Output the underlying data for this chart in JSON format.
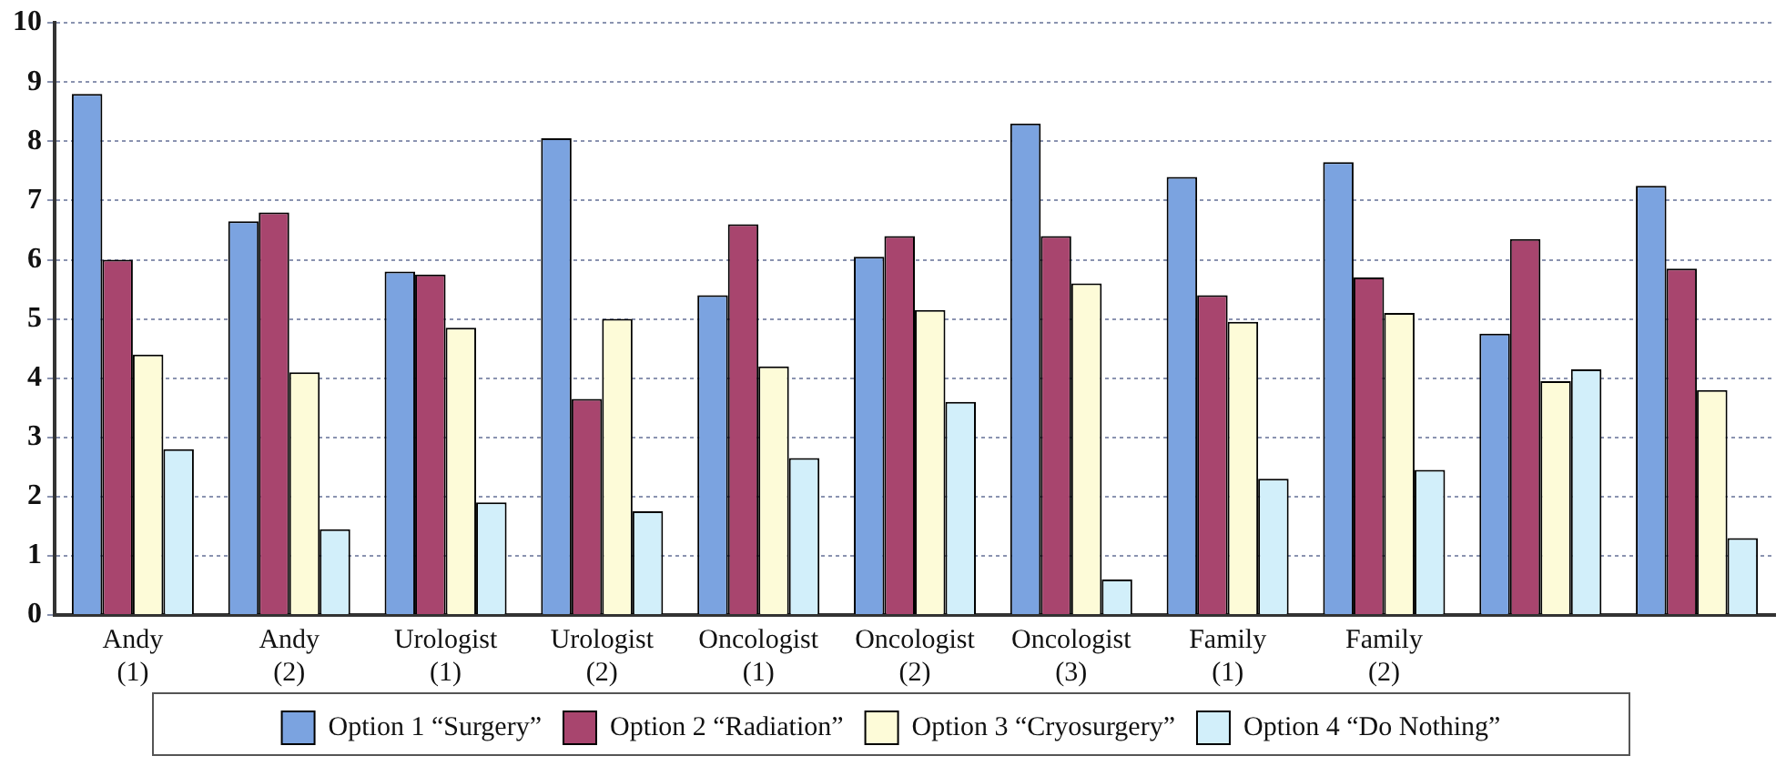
{
  "chart_data": {
    "type": "bar",
    "categories": [
      "Andy (1)",
      "Andy (2)",
      "Urologist (1)",
      "Urologist (2)",
      "Oncologist (1)",
      "Oncologist (2)",
      "Oncologist (3)",
      "Family (1)",
      "Family (2)",
      null,
      null
    ],
    "series": [
      {
        "name": "Option 1 “Surgery”",
        "color": "#7ba3e0",
        "values": [
          8.8,
          6.65,
          5.8,
          8.05,
          5.4,
          6.05,
          8.3,
          7.4,
          7.65,
          4.75,
          7.25
        ]
      },
      {
        "name": "Option 2 “Radiation”",
        "color": "#a8456e",
        "values": [
          6.0,
          6.8,
          5.75,
          3.65,
          6.6,
          6.4,
          6.4,
          5.4,
          5.7,
          6.35,
          5.85
        ]
      },
      {
        "name": "Option 3 “Cryosurgery”",
        "color": "#fdfbd8",
        "values": [
          4.4,
          4.1,
          4.85,
          5.0,
          4.2,
          5.15,
          5.6,
          4.95,
          5.1,
          3.95,
          3.8
        ]
      },
      {
        "name": "Option 4 “Do Nothing”",
        "color": "#d2effa",
        "values": [
          2.8,
          1.45,
          1.9,
          1.75,
          2.65,
          3.6,
          0.6,
          2.3,
          2.45,
          4.15,
          1.3
        ]
      }
    ],
    "ylim": [
      0,
      10
    ],
    "yticks": [
      0,
      1,
      2,
      3,
      4,
      5,
      6,
      7,
      8,
      9,
      10
    ],
    "grid": "y",
    "legend": "bottom"
  }
}
